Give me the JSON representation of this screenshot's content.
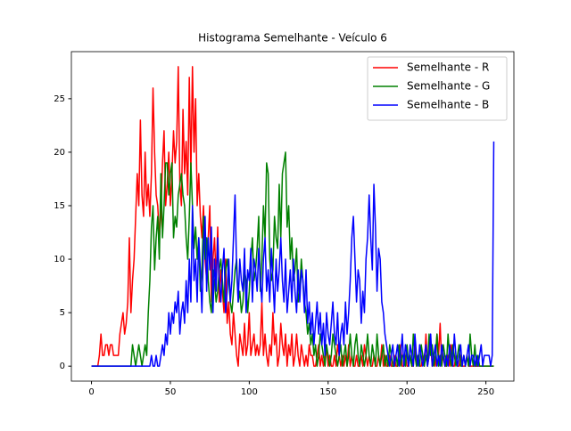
{
  "chart_data": {
    "type": "line",
    "title": "Histograma Semelhante - Veículo 6",
    "x": [
      0,
      1,
      2,
      3,
      4,
      5,
      6,
      7,
      8,
      9,
      10,
      11,
      12,
      13,
      14,
      15,
      16,
      17,
      18,
      19,
      20,
      21,
      22,
      23,
      24,
      25,
      26,
      27,
      28,
      29,
      30,
      31,
      32,
      33,
      34,
      35,
      36,
      37,
      38,
      39,
      40,
      41,
      42,
      43,
      44,
      45,
      46,
      47,
      48,
      49,
      50,
      51,
      52,
      53,
      54,
      55,
      56,
      57,
      58,
      59,
      60,
      61,
      62,
      63,
      64,
      65,
      66,
      67,
      68,
      69,
      70,
      71,
      72,
      73,
      74,
      75,
      76,
      77,
      78,
      79,
      80,
      81,
      82,
      83,
      84,
      85,
      86,
      87,
      88,
      89,
      90,
      91,
      92,
      93,
      94,
      95,
      96,
      97,
      98,
      99,
      100,
      101,
      102,
      103,
      104,
      105,
      106,
      107,
      108,
      109,
      110,
      111,
      112,
      113,
      114,
      115,
      116,
      117,
      118,
      119,
      120,
      121,
      122,
      123,
      124,
      125,
      126,
      127,
      128,
      129,
      130,
      131,
      132,
      133,
      134,
      135,
      136,
      137,
      138,
      139,
      140,
      141,
      142,
      143,
      144,
      145,
      146,
      147,
      148,
      149,
      150,
      151,
      152,
      153,
      154,
      155,
      156,
      157,
      158,
      159,
      160,
      161,
      162,
      163,
      164,
      165,
      166,
      167,
      168,
      169,
      170,
      171,
      172,
      173,
      174,
      175,
      176,
      177,
      178,
      179,
      180,
      181,
      182,
      183,
      184,
      185,
      186,
      187,
      188,
      189,
      190,
      191,
      192,
      193,
      194,
      195,
      196,
      197,
      198,
      199,
      200,
      201,
      202,
      203,
      204,
      205,
      206,
      207,
      208,
      209,
      210,
      211,
      212,
      213,
      214,
      215,
      216,
      217,
      218,
      219,
      220,
      221,
      222,
      223,
      224,
      225,
      226,
      227,
      228,
      229,
      230,
      231,
      232,
      233,
      234,
      235,
      236,
      237,
      238,
      239,
      240,
      241,
      242,
      243,
      244,
      245,
      246,
      247,
      248,
      249,
      250,
      251,
      252,
      253,
      254,
      255
    ],
    "series": [
      {
        "name": "Semelhante - R",
        "color": "#ff0000",
        "values": [
          0,
          0,
          0,
          0,
          0,
          1,
          3,
          1,
          1,
          2,
          2,
          1,
          2,
          2,
          1,
          1,
          1,
          1,
          3,
          4,
          5,
          3,
          4,
          6,
          12,
          5,
          8,
          10,
          14,
          18,
          15,
          23,
          16,
          14,
          20,
          15,
          17,
          14,
          18,
          26,
          20,
          16,
          15,
          12,
          14,
          19,
          22,
          15,
          17,
          20,
          15,
          18,
          22,
          19,
          21,
          28,
          17,
          15,
          24,
          18,
          21,
          16,
          27,
          18,
          28,
          20,
          25,
          15,
          18,
          14,
          12,
          15,
          10,
          8,
          12,
          15,
          6,
          10,
          12,
          8,
          13,
          6,
          9,
          7,
          5,
          10,
          4,
          6,
          3,
          2,
          5,
          3,
          1,
          0,
          3,
          2,
          1,
          4,
          1,
          2,
          5,
          1,
          2,
          3,
          1,
          2,
          1,
          2,
          6,
          1,
          3,
          1,
          0,
          2,
          1,
          5,
          2,
          3,
          0,
          1,
          4,
          2,
          1,
          3,
          0,
          2,
          1,
          3,
          0,
          1,
          3,
          1,
          0,
          2,
          1,
          0,
          1,
          0,
          2,
          1,
          1,
          0,
          0,
          1,
          2,
          0,
          1,
          0,
          1,
          2,
          0,
          1,
          0,
          0,
          1,
          0,
          2,
          1,
          0,
          1,
          0,
          1,
          0,
          2,
          0,
          1,
          0,
          0,
          1,
          0,
          0,
          1,
          0,
          2,
          1,
          0,
          1,
          0,
          0,
          1,
          0,
          0,
          1,
          0,
          2,
          0,
          1,
          0,
          0,
          1,
          0,
          0,
          1,
          0,
          0,
          1,
          2,
          0,
          0,
          1,
          0,
          0,
          1,
          0,
          0,
          2,
          0,
          1,
          0,
          0,
          1,
          0,
          3,
          0,
          1,
          2,
          0,
          1,
          0,
          3,
          1,
          4,
          0,
          1,
          0,
          0,
          1,
          0,
          2,
          0,
          0,
          1,
          0,
          0,
          1,
          0,
          0,
          0,
          1,
          0,
          0,
          0,
          0,
          0,
          0,
          0,
          0,
          0,
          0,
          0,
          0,
          0,
          0,
          0,
          0,
          0
        ]
      },
      {
        "name": "Semelhante - G",
        "color": "#008000",
        "values": [
          0,
          0,
          0,
          0,
          0,
          0,
          0,
          0,
          0,
          0,
          0,
          0,
          0,
          0,
          0,
          0,
          0,
          0,
          0,
          0,
          0,
          0,
          0,
          0,
          0,
          0,
          2,
          1,
          0,
          1,
          2,
          1,
          0,
          1,
          2,
          1,
          5,
          8,
          13,
          15,
          9,
          12,
          14,
          10,
          18,
          12,
          15,
          19,
          19,
          16,
          18,
          19,
          12,
          14,
          13,
          16,
          17,
          18,
          16,
          15,
          12,
          10,
          14,
          19,
          15,
          11,
          13,
          10,
          12,
          7,
          9,
          14,
          10,
          12,
          8,
          6,
          5,
          9,
          8,
          6,
          7,
          9,
          10,
          8,
          6,
          9,
          10,
          8,
          6,
          5,
          7,
          9,
          10,
          6,
          7,
          5,
          6,
          9,
          8,
          5,
          7,
          10,
          12,
          8,
          9,
          11,
          14,
          7,
          10,
          15,
          12,
          19,
          18,
          10,
          8,
          9,
          14,
          12,
          11,
          17,
          12,
          18,
          19,
          20,
          13,
          15,
          10,
          12,
          8,
          9,
          11,
          6,
          7,
          10,
          8,
          6,
          5,
          3,
          4,
          2,
          3,
          1,
          2,
          0,
          1,
          3,
          2,
          1,
          0,
          2,
          1,
          0,
          1,
          3,
          2,
          1,
          0,
          1,
          2,
          0,
          1,
          2,
          0,
          1,
          3,
          1,
          0,
          2,
          3,
          1,
          0,
          2,
          1,
          0,
          1,
          3,
          1,
          0,
          2,
          1,
          0,
          3,
          1,
          0,
          1,
          2,
          0,
          1,
          0,
          2,
          1,
          0,
          0,
          1,
          0,
          2,
          0,
          1,
          1,
          0,
          2,
          0,
          1,
          0,
          3,
          1,
          0,
          1,
          0,
          2,
          1,
          0,
          1,
          0,
          3,
          1,
          2,
          0,
          1,
          3,
          0,
          1,
          0,
          2,
          1,
          0,
          3,
          1,
          0,
          2,
          1,
          0,
          1,
          2,
          0,
          0,
          1,
          0,
          1,
          0,
          3,
          1,
          0,
          2,
          0,
          1,
          0,
          0,
          0,
          0,
          0,
          0,
          0,
          0,
          0,
          0
        ]
      },
      {
        "name": "Semelhante - B",
        "color": "#0000ff",
        "values": [
          0,
          0,
          0,
          0,
          0,
          0,
          0,
          0,
          0,
          0,
          0,
          0,
          0,
          0,
          0,
          0,
          0,
          0,
          0,
          0,
          0,
          0,
          0,
          0,
          0,
          0,
          0,
          0,
          0,
          0,
          0,
          0,
          0,
          0,
          0,
          0,
          0,
          0,
          1,
          0,
          0,
          1,
          0,
          0,
          1,
          2,
          1,
          3,
          2,
          5,
          3,
          5,
          4,
          6,
          5,
          7,
          3,
          5,
          6,
          4,
          8,
          5,
          10,
          6,
          15,
          8,
          10,
          6,
          12,
          9,
          5,
          11,
          14,
          7,
          12,
          9,
          13,
          5,
          10,
          7,
          12,
          8,
          6,
          9,
          11,
          5,
          7,
          10,
          6,
          8,
          12,
          16,
          9,
          6,
          10,
          8,
          7,
          11,
          5,
          9,
          8,
          11,
          6,
          10,
          9,
          7,
          11,
          8,
          6,
          10,
          12,
          7,
          9,
          6,
          11,
          8,
          5,
          10,
          7,
          9,
          12,
          8,
          6,
          10,
          5,
          7,
          9,
          6,
          10,
          7,
          5,
          9,
          6,
          9,
          8,
          5,
          9,
          4,
          6,
          3,
          5,
          2,
          4,
          6,
          3,
          5,
          2,
          4,
          1,
          5,
          3,
          2,
          4,
          6,
          3,
          2,
          5,
          1,
          3,
          4,
          2,
          6,
          3,
          5,
          8,
          12,
          14,
          10,
          6,
          9,
          8,
          4,
          7,
          5,
          10,
          12,
          16,
          12,
          9,
          17,
          13,
          7,
          11,
          10,
          6,
          5,
          3,
          2,
          1,
          0,
          1,
          2,
          0,
          1,
          2,
          0,
          1,
          3,
          0,
          2,
          1,
          0,
          2,
          1,
          0,
          3,
          1,
          0,
          2,
          1,
          0,
          1,
          2,
          0,
          1,
          3,
          0,
          1,
          2,
          0,
          1,
          0,
          2,
          1,
          0,
          1,
          0,
          2,
          1,
          0,
          3,
          1,
          0,
          1,
          2,
          0,
          1,
          0,
          1,
          2,
          0,
          1,
          1,
          0,
          1,
          0,
          1,
          2,
          0,
          1,
          1,
          1,
          1,
          0,
          1,
          21
        ]
      }
    ],
    "xlim": [
      -12.75,
      267.75
    ],
    "ylim": [
      -1.4,
      29.4
    ],
    "xticks": [
      0,
      50,
      100,
      150,
      200,
      250
    ],
    "yticks": [
      0,
      5,
      10,
      15,
      20,
      25
    ],
    "legend": "upper right"
  }
}
